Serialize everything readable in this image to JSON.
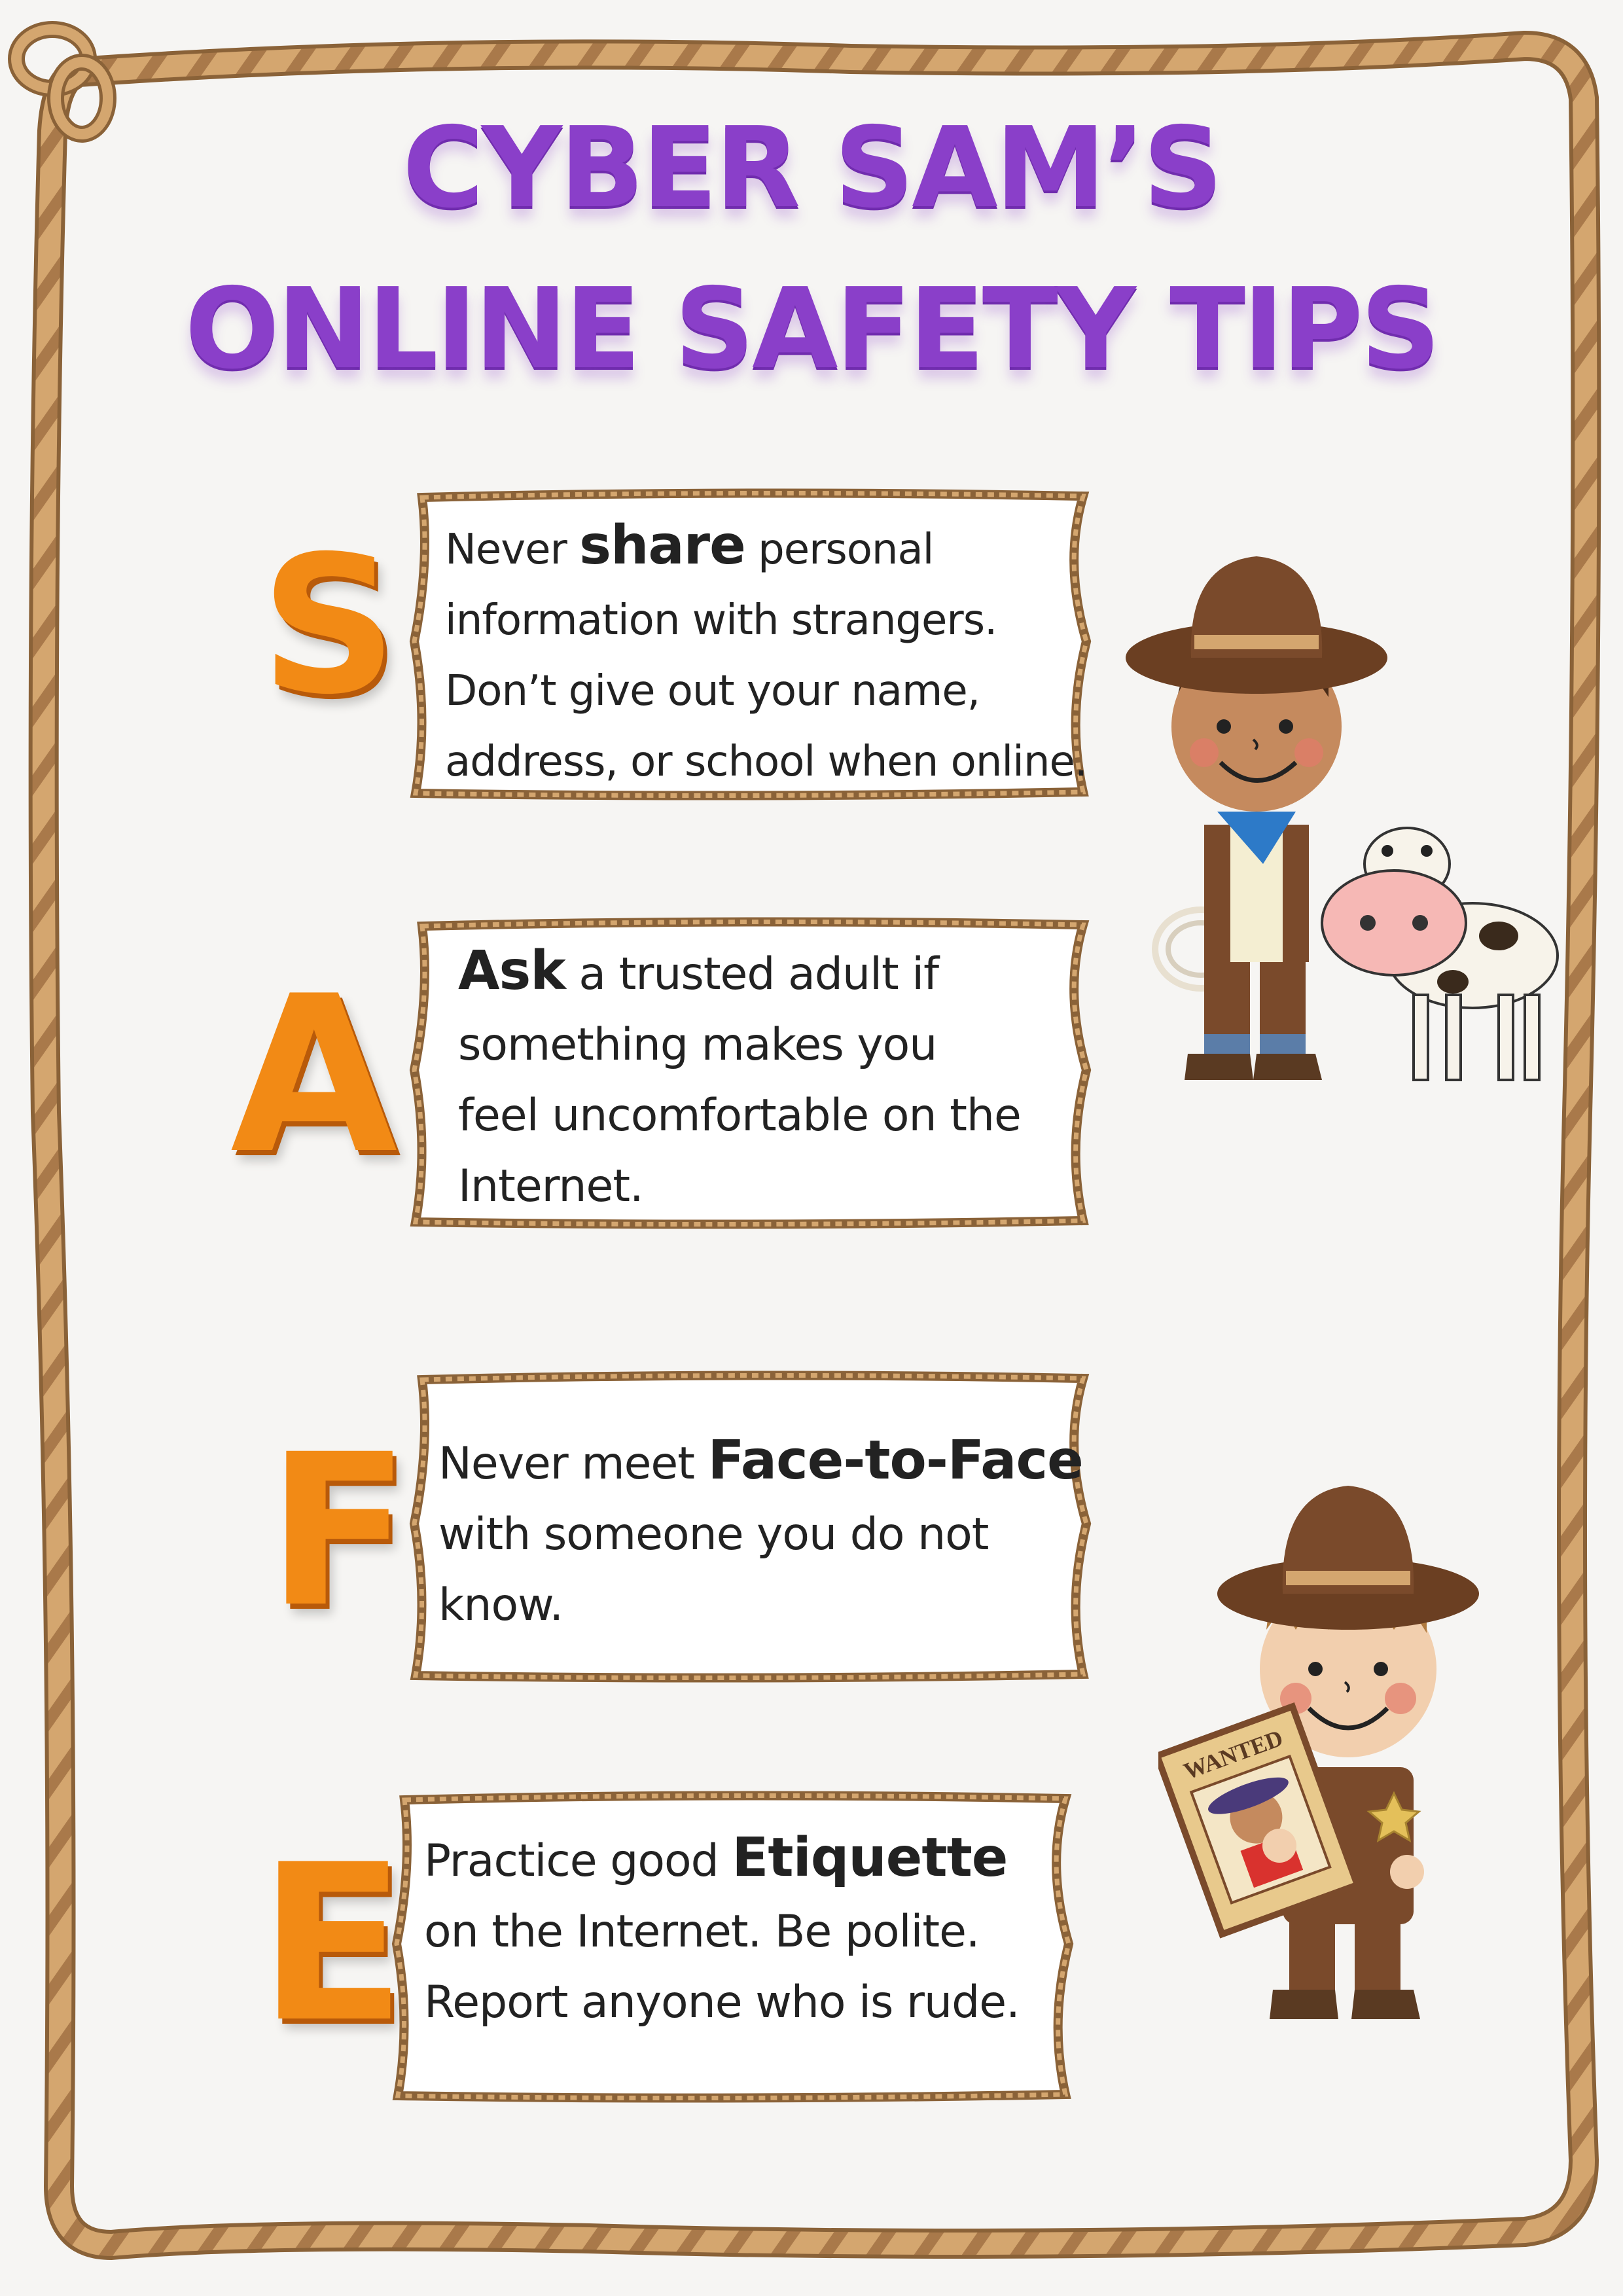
{
  "poster": {
    "title_line_1": "CYBER SAM’S",
    "title_line_2": "ONLINE SAFETY TIPS"
  },
  "tips": [
    {
      "letter": "S",
      "lines": [
        {
          "before": "Never ",
          "keyword": "share",
          "after": " personal"
        },
        {
          "before": "information with strangers.",
          "keyword": "",
          "after": ""
        },
        {
          "before": "Don’t give out your name,",
          "keyword": "",
          "after": ""
        },
        {
          "before": "address, or school when online.",
          "keyword": "",
          "after": ""
        }
      ]
    },
    {
      "letter": "A",
      "lines": [
        {
          "before": "",
          "keyword": "Ask",
          "after": " a trusted adult if"
        },
        {
          "before": "something makes you",
          "keyword": "",
          "after": ""
        },
        {
          "before": "feel uncomfortable on the",
          "keyword": "",
          "after": ""
        },
        {
          "before": "Internet.",
          "keyword": "",
          "after": ""
        }
      ]
    },
    {
      "letter": "F",
      "lines": [
        {
          "before": "Never meet ",
          "keyword": "Face-to-Face",
          "after": ""
        },
        {
          "before": "with someone you do not",
          "keyword": "",
          "after": ""
        },
        {
          "before": "know.",
          "keyword": "",
          "after": ""
        }
      ]
    },
    {
      "letter": "E",
      "lines": [
        {
          "before": "Practice good ",
          "keyword": "Etiquette",
          "after": ""
        },
        {
          "before": "on the Internet. Be polite.",
          "keyword": "",
          "after": ""
        },
        {
          "before": "Report anyone who is rude.",
          "keyword": "",
          "after": ""
        }
      ]
    }
  ],
  "illustrations": {
    "cowboy_with_cow_icon": "cowboy-with-cow",
    "cowboy_with_wanted_poster_icon": "cowboy-with-wanted-poster",
    "wanted_sign_text": "WANTED"
  },
  "colors": {
    "title": "#8a3fc9",
    "letters": "#f28a15",
    "rope": "#c99a63",
    "rope_dark": "#8a6238",
    "text": "#222222"
  }
}
